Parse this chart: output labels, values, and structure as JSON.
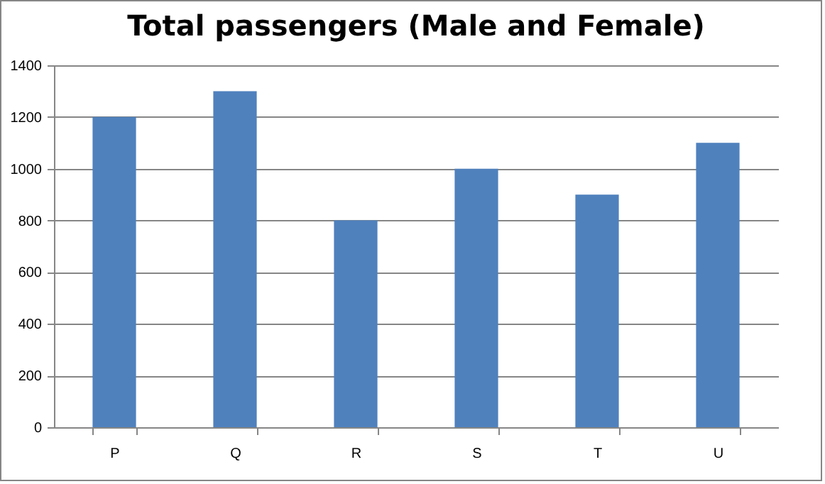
{
  "chart_data": {
    "type": "bar",
    "title": "Total passengers (Male and Female)",
    "categories": [
      "P",
      "Q",
      "R",
      "S",
      "T",
      "U"
    ],
    "values": [
      1200,
      1300,
      800,
      1000,
      900,
      1100
    ],
    "color": "#4f81bd",
    "ylim": [
      0,
      1400
    ],
    "yticks": [
      0,
      200,
      400,
      600,
      800,
      1000,
      1200,
      1400
    ],
    "grid": "y"
  }
}
